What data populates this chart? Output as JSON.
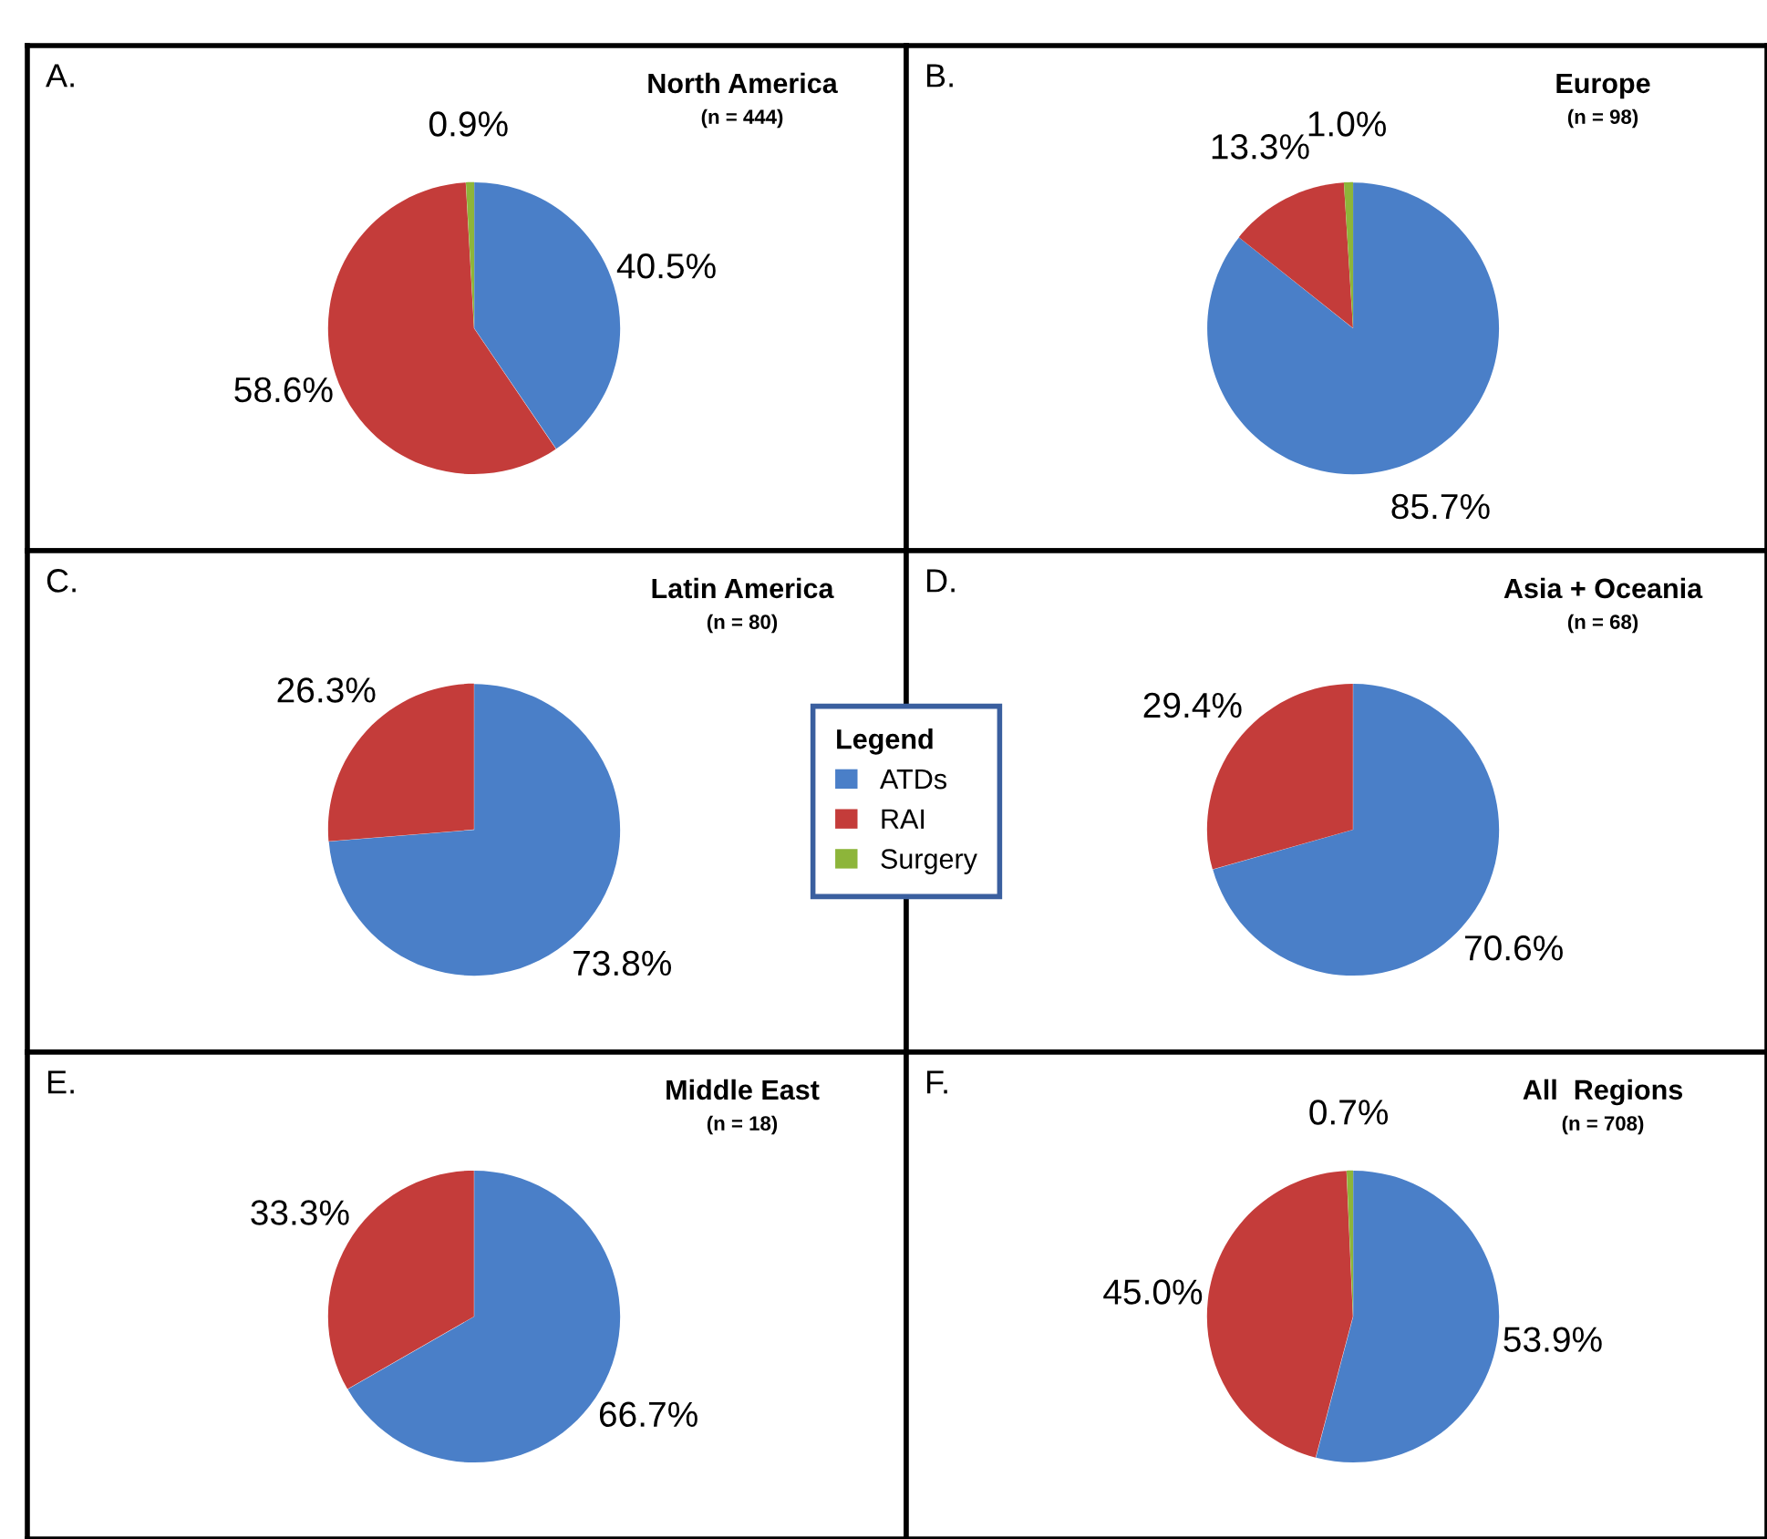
{
  "chart_data": [
    {
      "type": "pie",
      "title": "North America",
      "subtitle": "(n = 444)",
      "annotations": [
        "A."
      ],
      "categories": [
        null,
        null,
        null
      ],
      "values": [
        40.5,
        58.6,
        0.9
      ],
      "value_labels": [
        "40.5%",
        "58.6%",
        "0.9%"
      ],
      "colors": [
        "#4a7fc8",
        "#c43c3a",
        "#8db53a"
      ]
    },
    {
      "type": "pie",
      "title": "Europe",
      "subtitle": "(n = 98)",
      "annotations": [
        "B."
      ],
      "categories": [
        null,
        null,
        null
      ],
      "values": [
        85.7,
        13.3,
        1.0
      ],
      "value_labels": [
        "85.7%",
        "13.3%",
        "1.0%"
      ],
      "colors": [
        "#4a7fc8",
        "#c43c3a",
        "#8db53a"
      ]
    },
    {
      "type": "pie",
      "title": "Latin America",
      "subtitle": "(n = 80)",
      "annotations": [
        "C."
      ],
      "categories": [
        "ATDs",
        "RAI",
        "Surgery"
      ],
      "values": [
        73.8,
        26.3,
        null
      ],
      "value_labels": [
        "73.8%",
        "26.3%",
        null
      ],
      "colors": [
        "#4a7fc8",
        "#c43c3a",
        "#8db53a"
      ],
      "legend": "right",
      "legend_title": "Legend"
    },
    {
      "type": "pie",
      "title": "Asia + Oceania",
      "subtitle": "(n = 68)",
      "annotations": [
        "D."
      ],
      "categories": [
        null,
        null
      ],
      "values": [
        70.6,
        29.4
      ],
      "value_labels": [
        "70.6%",
        "29.4%"
      ],
      "colors": [
        "#4a7fc8",
        "#c43c3a"
      ]
    },
    {
      "type": "pie",
      "title": "Middle East",
      "subtitle": "(n = 18)",
      "annotations": [
        "E."
      ],
      "categories": [
        null,
        null
      ],
      "values": [
        66.7,
        33.3
      ],
      "value_labels": [
        "66.7%",
        "33.3%"
      ],
      "colors": [
        "#4a7fc8",
        "#c43c3a"
      ]
    },
    {
      "type": "pie",
      "title": "All  Regions",
      "subtitle": "(n = 708)",
      "annotations": [
        "F."
      ],
      "categories": [
        null,
        null,
        null
      ],
      "values": [
        53.9,
        45.0,
        0.7
      ],
      "value_labels": [
        "53.9%",
        "45.0%",
        "0.7%"
      ],
      "colors": [
        "#4a7fc8",
        "#c43c3a",
        "#8db53a"
      ]
    }
  ]
}
